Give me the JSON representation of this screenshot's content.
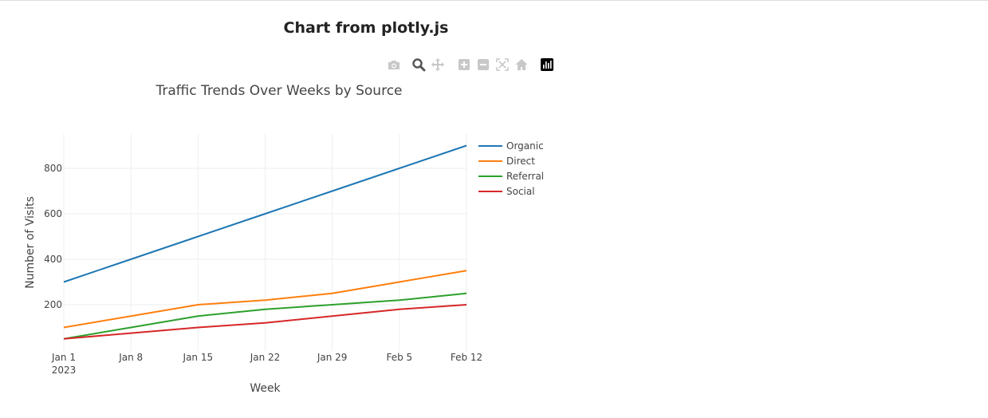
{
  "page": {
    "title": "Chart from plotly.js"
  },
  "modebar": {
    "buttons": [
      {
        "name": "camera-icon",
        "active": false
      },
      {
        "name": "zoom-icon",
        "active": true
      },
      {
        "name": "pan-icon",
        "active": false
      },
      {
        "name": "zoom-in-icon",
        "active": false
      },
      {
        "name": "zoom-out-icon",
        "active": false
      },
      {
        "name": "autoscale-icon",
        "active": false
      },
      {
        "name": "home-icon",
        "active": false
      },
      {
        "name": "plotly-logo-icon",
        "active": false
      }
    ]
  },
  "colors": {
    "grid": "#eeeeee",
    "text": "#444444",
    "modebar_inactive": "#c8c8c8",
    "modebar_active": "#555555"
  },
  "chart_data": {
    "type": "line",
    "title": "Traffic Trends Over Weeks by Source",
    "xlabel": "Week",
    "ylabel": "Number of Visits",
    "x": [
      "2023-01-01",
      "2023-01-08",
      "2023-01-15",
      "2023-01-22",
      "2023-01-29",
      "2023-02-05",
      "2023-02-12"
    ],
    "x_tick_labels": [
      "Jan 1",
      "Jan 8",
      "Jan 15",
      "Jan 22",
      "Jan 29",
      "Feb 5",
      "Feb 12"
    ],
    "x_tick_sublabel": "2023",
    "y_ticks": [
      200,
      400,
      600,
      800
    ],
    "ylim": [
      50,
      900
    ],
    "grid": true,
    "legend_position": "right",
    "series": [
      {
        "name": "Organic",
        "color": "#1f77b4",
        "values": [
          300,
          400,
          500,
          600,
          700,
          800,
          900
        ]
      },
      {
        "name": "Direct",
        "color": "#ff7f0e",
        "values": [
          100,
          150,
          200,
          220,
          250,
          300,
          350
        ]
      },
      {
        "name": "Referral",
        "color": "#2ca02c",
        "values": [
          50,
          100,
          150,
          180,
          200,
          220,
          250
        ]
      },
      {
        "name": "Social",
        "color": "#d62728",
        "values": [
          50,
          75,
          100,
          120,
          150,
          180,
          200
        ]
      }
    ]
  }
}
